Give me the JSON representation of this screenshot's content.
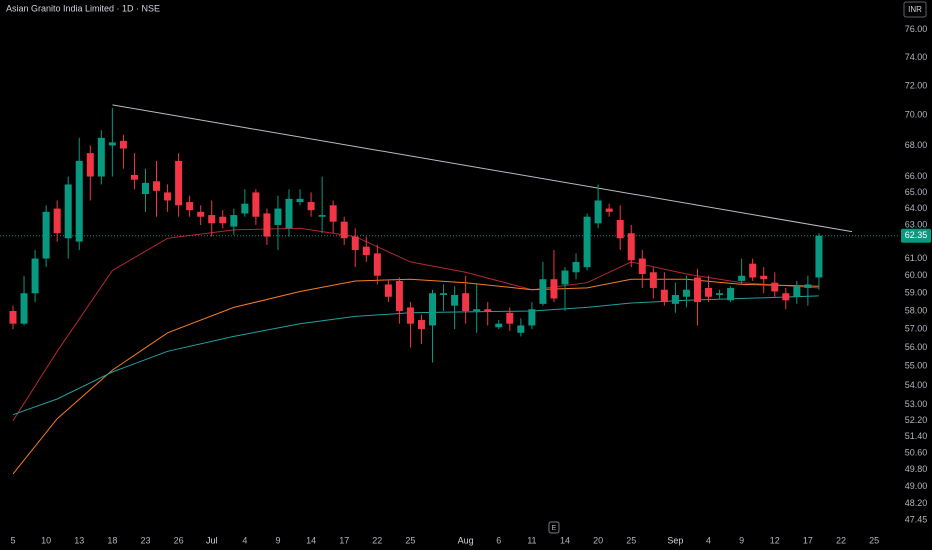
{
  "chart_data": {
    "type": "candlestick",
    "title": "Asian Granito India Limited · 1D · NSE",
    "currency": "INR",
    "log_scale": true,
    "up_color": "#089981",
    "down_color": "#f23645",
    "categories": [
      "5",
      null,
      null,
      "10",
      null,
      null,
      "13",
      null,
      null,
      "18",
      null,
      null,
      "23",
      null,
      null,
      "26",
      null,
      null,
      "Jul",
      null,
      null,
      "4",
      null,
      null,
      "9",
      null,
      null,
      "14",
      null,
      null,
      "17",
      null,
      null,
      "22",
      null,
      null,
      "25",
      null,
      null,
      null,
      null,
      "Aug",
      null,
      null,
      "6",
      null,
      null,
      "11",
      null,
      null,
      "14",
      null,
      null,
      "20",
      null,
      null,
      "25",
      null,
      null,
      null,
      "Sep",
      null,
      null,
      "4",
      null,
      null,
      "9",
      null,
      null,
      "12",
      null,
      null,
      "17",
      null,
      null,
      "22",
      null,
      null,
      "25"
    ],
    "open": [
      58.0,
      57.3,
      59.0,
      61.0,
      64.0,
      62.2,
      62.0,
      67.5,
      66.0,
      68.0,
      68.3,
      66.1,
      64.9,
      65.7,
      65.0,
      67.0,
      64.4,
      63.8,
      63.6,
      63.5,
      62.9,
      63.7,
      65.0,
      63.7,
      63.0,
      62.8,
      64.4,
      64.4,
      63.5,
      64.2,
      63.2,
      62.3,
      61.7,
      61.3,
      59.5,
      59.7,
      58.2,
      57.5,
      57.2,
      58.9,
      58.3,
      59.0,
      58.0,
      58.1,
      57.1,
      57.9,
      56.8,
      57.2,
      58.4,
      59.8,
      59.5,
      60.2,
      60.5,
      63.1,
      64.0,
      63.3,
      62.5,
      61.0,
      60.2,
      59.2,
      58.4,
      58.8,
      59.9,
      59.3,
      58.9,
      58.6,
      59.7,
      60.7,
      60.0,
      59.6,
      59.0,
      58.8,
      59.3,
      59.9,
      null,
      null,
      null,
      null,
      null
    ],
    "high": [
      58.3,
      60.0,
      61.5,
      64.2,
      64.5,
      66.0,
      68.5,
      68.0,
      69.0,
      70.5,
      68.7,
      67.5,
      66.5,
      67.0,
      65.5,
      67.5,
      64.8,
      64.2,
      64.5,
      63.9,
      64.0,
      65.2,
      65.2,
      64.0,
      64.8,
      65.2,
      65.2,
      65.0,
      66.0,
      64.5,
      63.5,
      62.8,
      62.3,
      61.8,
      59.8,
      59.9,
      58.5,
      57.8,
      59.2,
      59.5,
      59.4,
      60.0,
      59.5,
      58.5,
      57.5,
      58.2,
      57.6,
      58.5,
      60.8,
      61.5,
      60.5,
      61.3,
      63.7,
      65.5,
      64.3,
      64.2,
      63.0,
      61.5,
      60.5,
      60.2,
      59.6,
      60.0,
      60.4,
      60.0,
      59.2,
      59.4,
      61.0,
      61.0,
      60.5,
      60.2,
      59.3,
      59.7,
      60.0,
      62.5,
      null,
      null,
      null,
      null,
      null
    ],
    "low": [
      57.0,
      57.2,
      58.5,
      60.5,
      62.0,
      61.0,
      61.5,
      64.5,
      65.5,
      66.0,
      66.5,
      65.2,
      63.8,
      63.5,
      63.8,
      63.5,
      63.5,
      63.0,
      62.3,
      62.8,
      62.4,
      63.5,
      63.0,
      61.8,
      61.5,
      62.3,
      64.2,
      63.5,
      62.5,
      62.5,
      61.8,
      60.5,
      60.8,
      59.5,
      58.5,
      57.3,
      56.0,
      56.2,
      55.2,
      58.0,
      57.0,
      57.3,
      56.8,
      57.2,
      57.0,
      56.9,
      56.6,
      57.0,
      58.3,
      58.5,
      58.0,
      59.8,
      60.3,
      62.8,
      63.5,
      61.5,
      60.5,
      59.3,
      58.7,
      58.3,
      57.9,
      58.2,
      57.2,
      58.5,
      58.7,
      58.5,
      59.5,
      59.7,
      59.0,
      58.8,
      58.1,
      58.4,
      58.3,
      59.2,
      null,
      null,
      null,
      null,
      null
    ],
    "close": [
      57.3,
      59.0,
      61.0,
      63.8,
      62.5,
      65.5,
      67.0,
      66.0,
      68.5,
      68.2,
      67.8,
      65.8,
      65.6,
      65.1,
      64.5,
      64.2,
      63.9,
      63.5,
      63.1,
      63.1,
      63.6,
      64.3,
      63.5,
      62.3,
      64.0,
      64.6,
      64.6,
      63.9,
      63.6,
      63.2,
      62.2,
      61.5,
      61.2,
      60.0,
      58.8,
      58.0,
      57.3,
      57.0,
      59.0,
      59.0,
      58.9,
      58.0,
      58.1,
      58.0,
      57.3,
      57.3,
      57.2,
      58.1,
      59.8,
      58.7,
      60.3,
      60.8,
      63.5,
      64.5,
      63.8,
      62.2,
      60.9,
      60.1,
      59.3,
      58.5,
      58.9,
      59.2,
      58.5,
      58.8,
      59.0,
      59.3,
      60.0,
      59.9,
      59.8,
      59.1,
      58.6,
      59.4,
      59.5,
      62.35,
      null,
      null,
      null,
      null,
      null
    ],
    "lines": [
      {
        "color": "#b22833",
        "x": [
          0,
          4,
          9,
          14,
          20,
          26,
          31,
          36,
          41,
          47,
          52,
          56,
          61,
          66,
          73
        ],
        "values": [
          52.2,
          55.8,
          60.3,
          62.2,
          62.7,
          62.8,
          62.3,
          60.8,
          60.2,
          59.2,
          59.6,
          60.8,
          60.1,
          59.6,
          59.3
        ]
      },
      {
        "color": "#f57c24",
        "x": [
          0,
          4,
          9,
          14,
          20,
          26,
          31,
          36,
          41,
          47,
          52,
          56,
          61,
          66,
          73
        ],
        "values": [
          49.6,
          52.3,
          54.8,
          56.8,
          58.2,
          59.1,
          59.7,
          59.8,
          59.6,
          59.2,
          59.3,
          59.8,
          59.8,
          59.5,
          59.4
        ]
      },
      {
        "color": "#22a0a0",
        "x": [
          0,
          4,
          9,
          14,
          20,
          26,
          31,
          36,
          41,
          47,
          52,
          56,
          61,
          66,
          73
        ],
        "values": [
          52.5,
          53.3,
          54.7,
          55.8,
          56.6,
          57.3,
          57.7,
          57.9,
          57.95,
          58.0,
          58.2,
          58.45,
          58.6,
          58.7,
          58.85
        ]
      }
    ],
    "trendline": {
      "color": "#b8bcc4",
      "x": [
        9,
        76
      ],
      "values": [
        70.7,
        62.6
      ]
    },
    "last_price": {
      "value": 62.35,
      "label": "62.35"
    },
    "events": [
      {
        "x": 49,
        "label": "E"
      }
    ],
    "ylim": [
      46.77,
      78.2
    ],
    "yticks": [
      {
        "value": 76,
        "label": "76.00"
      },
      {
        "value": 74,
        "label": "74.00"
      },
      {
        "value": 72,
        "label": "72.00"
      },
      {
        "value": 70,
        "label": "70.00"
      },
      {
        "value": 68,
        "label": "68.00"
      },
      {
        "value": 66,
        "label": "66.00"
      },
      {
        "value": 65,
        "label": "65.00"
      },
      {
        "value": 64,
        "label": "64.00"
      },
      {
        "value": 63,
        "label": "63.00"
      },
      {
        "value": 61,
        "label": "61.00"
      },
      {
        "value": 60,
        "label": "60.00"
      },
      {
        "value": 59,
        "label": "59.00"
      },
      {
        "value": 58,
        "label": "58.00"
      },
      {
        "value": 57,
        "label": "57.00"
      },
      {
        "value": 56,
        "label": "56.00"
      },
      {
        "value": 55,
        "label": "55.00"
      },
      {
        "value": 54,
        "label": "54.00"
      },
      {
        "value": 53,
        "label": "53.00"
      },
      {
        "value": 52.2,
        "label": "52.20"
      },
      {
        "value": 51.4,
        "label": "51.40"
      },
      {
        "value": 50.6,
        "label": "50.60"
      },
      {
        "value": 49.8,
        "label": "49.80"
      },
      {
        "value": 49,
        "label": "49.00"
      },
      {
        "value": 48.2,
        "label": "48.20"
      },
      {
        "value": 47.45,
        "label": "47.45"
      }
    ],
    "grid": false
  }
}
